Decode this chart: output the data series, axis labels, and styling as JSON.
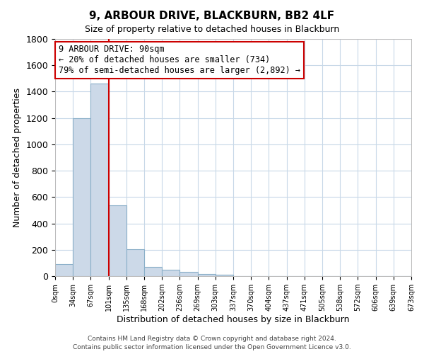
{
  "title": "9, ARBOUR DRIVE, BLACKBURN, BB2 4LF",
  "subtitle": "Size of property relative to detached houses in Blackburn",
  "xlabel": "Distribution of detached houses by size in Blackburn",
  "ylabel": "Number of detached properties",
  "bin_labels": [
    "0sqm",
    "34sqm",
    "67sqm",
    "101sqm",
    "135sqm",
    "168sqm",
    "202sqm",
    "236sqm",
    "269sqm",
    "303sqm",
    "337sqm",
    "370sqm",
    "404sqm",
    "437sqm",
    "471sqm",
    "505sqm",
    "538sqm",
    "572sqm",
    "606sqm",
    "639sqm",
    "673sqm"
  ],
  "bar_heights": [
    90,
    1200,
    1460,
    540,
    205,
    70,
    50,
    30,
    15,
    10,
    0,
    0,
    0,
    0,
    0,
    0,
    0,
    0,
    0,
    0
  ],
  "bar_color": "#ccd9e8",
  "bar_edge_color": "#8aafc8",
  "vline_color": "#cc0000",
  "vline_x_index": 3,
  "ylim": [
    0,
    1800
  ],
  "yticks": [
    0,
    200,
    400,
    600,
    800,
    1000,
    1200,
    1400,
    1600,
    1800
  ],
  "annotation_title": "9 ARBOUR DRIVE: 90sqm",
  "annotation_line1": "← 20% of detached houses are smaller (734)",
  "annotation_line2": "79% of semi-detached houses are larger (2,892) →",
  "annotation_box_color": "#ffffff",
  "annotation_box_edge": "#cc0000",
  "footer1": "Contains HM Land Registry data © Crown copyright and database right 2024.",
  "footer2": "Contains public sector information licensed under the Open Government Licence v3.0.",
  "background_color": "#ffffff",
  "grid_color": "#c8d8e8"
}
